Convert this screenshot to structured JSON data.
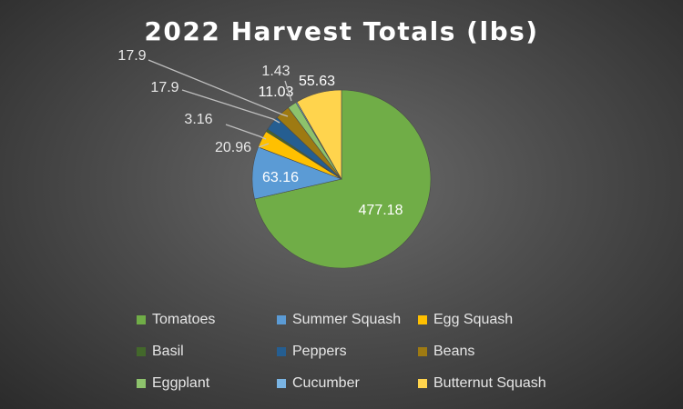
{
  "chart_data": {
    "type": "pie",
    "title": "2022 Harvest Totals (lbs)",
    "categories": [
      "Tomatoes",
      "Summer Squash",
      "Egg Squash",
      "Basil",
      "Peppers",
      "Beans",
      "Eggplant",
      "Cucumber",
      "Butternut Squash"
    ],
    "values": [
      477.18,
      63.16,
      20.96,
      3.16,
      17.9,
      17.9,
      11.03,
      1.43,
      55.63
    ],
    "data_labels": [
      "477.18",
      "63.16",
      "20.96",
      "3.16",
      "17.9",
      "17.9",
      "11.03",
      "1.43",
      "55.63"
    ],
    "colors": [
      "#70ad47",
      "#5b9bd5",
      "#ffc000",
      "#43682b",
      "#255e91",
      "#9e7a12",
      "#8dc26c",
      "#7ab4e3",
      "#ffd44d"
    ],
    "legend_position": "bottom",
    "background": "dark-gradient"
  }
}
